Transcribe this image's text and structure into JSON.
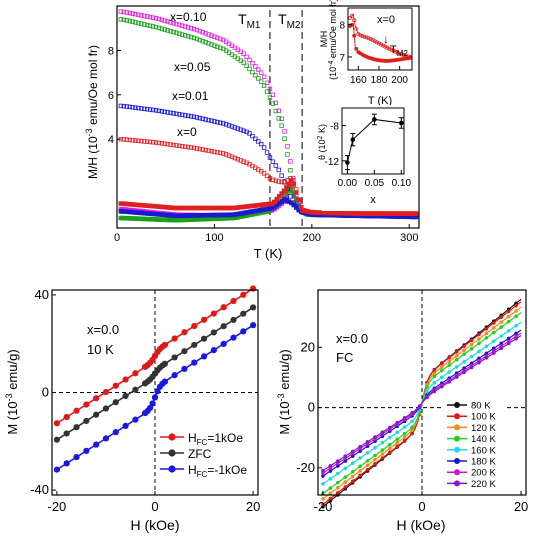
{
  "chart_data": [
    {
      "type": "scatter",
      "xlabel": "T (K)",
      "ylabel_parts": [
        "M/H (10",
        "-3",
        " emu/Oe mol fr)"
      ],
      "xlim": [
        0,
        310
      ],
      "ylim": [
        0,
        10
      ],
      "xticks": [
        0,
        100,
        200,
        300
      ],
      "yticks": [
        4,
        6,
        8
      ],
      "markers": [
        {
          "label": "T",
          "sub": "M1",
          "x": 157
        },
        {
          "label": "T",
          "sub": "M2",
          "x": 190
        }
      ],
      "series": [
        {
          "name": "x=0.10",
          "color": "#e020e0",
          "zfc": [
            [
              5,
              0.85
            ],
            [
              60,
              0.6
            ],
            [
              120,
              0.55
            ],
            [
              160,
              0.8
            ],
            [
              172,
              1.2
            ],
            [
              178,
              1.9
            ],
            [
              182,
              1.5
            ],
            [
              188,
              0.9
            ],
            [
              195,
              0.7
            ],
            [
              250,
              0.6
            ],
            [
              305,
              0.6
            ]
          ],
          "fc": [
            [
              5,
              9.75
            ],
            [
              40,
              9.45
            ],
            [
              80,
              8.95
            ],
            [
              110,
              8.45
            ],
            [
              130,
              7.85
            ],
            [
              150,
              6.9
            ],
            [
              160,
              6.0
            ],
            [
              170,
              4.8
            ],
            [
              178,
              3.0
            ],
            [
              184,
              1.5
            ],
            [
              190,
              0.8
            ],
            [
              200,
              0.7
            ],
            [
              250,
              0.62
            ],
            [
              305,
              0.6
            ]
          ]
        },
        {
          "name": "x=0.05",
          "color": "#1aa01a",
          "zfc": [
            [
              5,
              0.45
            ],
            [
              60,
              0.35
            ],
            [
              120,
              0.45
            ],
            [
              155,
              0.75
            ],
            [
              170,
              1.2
            ],
            [
              176,
              1.8
            ],
            [
              180,
              1.6
            ],
            [
              186,
              0.9
            ],
            [
              195,
              0.6
            ],
            [
              250,
              0.55
            ],
            [
              305,
              0.55
            ]
          ],
          "fc": [
            [
              5,
              9.4
            ],
            [
              40,
              9.05
            ],
            [
              80,
              8.55
            ],
            [
              110,
              8.05
            ],
            [
              130,
              7.45
            ],
            [
              150,
              6.5
            ],
            [
              160,
              5.6
            ],
            [
              170,
              4.5
            ],
            [
              178,
              2.6
            ],
            [
              184,
              1.2
            ],
            [
              190,
              0.7
            ],
            [
              200,
              0.6
            ],
            [
              250,
              0.55
            ],
            [
              305,
              0.55
            ]
          ]
        },
        {
          "name": "x=0.01",
          "color": "#1a1ad0",
          "zfc": [
            [
              5,
              0.75
            ],
            [
              60,
              0.55
            ],
            [
              120,
              0.6
            ],
            [
              160,
              0.9
            ],
            [
              172,
              1.3
            ],
            [
              180,
              1.1
            ],
            [
              188,
              0.75
            ],
            [
              200,
              0.6
            ],
            [
              250,
              0.55
            ],
            [
              305,
              0.5
            ]
          ],
          "fc": [
            [
              5,
              5.5
            ],
            [
              40,
              5.3
            ],
            [
              80,
              5.0
            ],
            [
              110,
              4.7
            ],
            [
              135,
              4.3
            ],
            [
              150,
              3.7
            ],
            [
              158,
              3.1
            ],
            [
              165,
              2.7
            ],
            [
              172,
              2.1
            ],
            [
              180,
              1.2
            ],
            [
              188,
              0.75
            ],
            [
              200,
              0.6
            ],
            [
              250,
              0.55
            ],
            [
              305,
              0.5
            ]
          ]
        },
        {
          "name": "x=0",
          "color": "#e02020",
          "zfc": [
            [
              5,
              1.1
            ],
            [
              60,
              0.9
            ],
            [
              120,
              0.9
            ],
            [
              160,
              1.1
            ],
            [
              172,
              1.7
            ],
            [
              180,
              2.2
            ],
            [
              184,
              1.6
            ],
            [
              190,
              0.8
            ],
            [
              200,
              0.7
            ],
            [
              250,
              0.65
            ],
            [
              305,
              0.65
            ]
          ],
          "fc": [
            [
              5,
              4.0
            ],
            [
              40,
              3.85
            ],
            [
              80,
              3.6
            ],
            [
              110,
              3.35
            ],
            [
              135,
              2.9
            ],
            [
              150,
              2.5
            ],
            [
              158,
              2.2
            ],
            [
              165,
              2.1
            ],
            [
              172,
              2.05
            ],
            [
              180,
              2.3
            ],
            [
              185,
              1.6
            ],
            [
              190,
              0.8
            ],
            [
              200,
              0.7
            ],
            [
              250,
              0.65
            ],
            [
              305,
              0.65
            ]
          ]
        }
      ]
    },
    {
      "type": "line",
      "inset": "top-right",
      "label": "x=0",
      "xlabel": "T (K)",
      "ylabel": "M/H",
      "ylabel2_parts": [
        "(10",
        "-4",
        " emu/Oe mol fr)"
      ],
      "arrow_label": {
        "label": "T",
        "sub": "M2"
      },
      "xlim": [
        150,
        212
      ],
      "ylim": [
        6.6,
        8.5
      ],
      "xticks": [
        160,
        180,
        200
      ],
      "yticks": [
        7,
        8
      ],
      "color": "#e02020",
      "fc": [
        [
          152,
          8.2
        ],
        [
          155,
          8.3
        ],
        [
          157,
          7.95
        ],
        [
          160,
          7.7
        ],
        [
          163,
          7.65
        ],
        [
          168,
          7.6
        ],
        [
          172,
          7.55
        ],
        [
          178,
          7.45
        ],
        [
          184,
          7.35
        ],
        [
          190,
          7.25
        ],
        [
          195,
          7.18
        ],
        [
          200,
          7.1
        ],
        [
          205,
          7.05
        ],
        [
          210,
          7.0
        ]
      ],
      "zfc": [
        [
          152,
          7.95
        ],
        [
          155,
          8.0
        ],
        [
          157,
          7.3
        ],
        [
          160,
          7.15
        ],
        [
          165,
          7.05
        ],
        [
          170,
          6.98
        ],
        [
          175,
          6.93
        ],
        [
          180,
          6.9
        ],
        [
          185,
          6.88
        ],
        [
          190,
          6.88
        ],
        [
          195,
          6.9
        ],
        [
          200,
          6.92
        ],
        [
          205,
          6.95
        ],
        [
          210,
          6.97
        ]
      ]
    },
    {
      "type": "line",
      "inset": "middle-right",
      "xlabel": "x",
      "ylabel_parts": [
        "θ (10",
        "2",
        " K)"
      ],
      "xlim": [
        -0.01,
        0.105
      ],
      "ylim": [
        -13.5,
        -6
      ],
      "xticks": [
        0.0,
        0.05,
        0.1
      ],
      "xtick_labels": [
        "0.00",
        "0.05",
        "0.10"
      ],
      "yticks": [
        -12,
        -8
      ],
      "points": [
        [
          0.0,
          -12.2,
          0.8
        ],
        [
          0.01,
          -9.6,
          0.7
        ],
        [
          0.05,
          -7.3,
          0.6
        ],
        [
          0.1,
          -7.7,
          0.6
        ]
      ]
    },
    {
      "type": "line",
      "xlabel": "H (kOe)",
      "ylabel_parts": [
        "M (10",
        "-3",
        " emu/g)"
      ],
      "label": "x=0.0",
      "label2": "10 K",
      "xlim": [
        -21,
        21
      ],
      "ylim": [
        -42,
        42
      ],
      "xticks": [
        -20,
        0,
        20
      ],
      "yticks": [
        -40,
        0,
        40
      ],
      "legend_placement": "bottom-right",
      "series": [
        {
          "name_parts": [
            "H",
            "FC",
            "=1kOe"
          ],
          "color": "#e01818",
          "slope": 1.28,
          "offset": 16,
          "step": 2.0
        },
        {
          "name_parts": [
            "ZFC"
          ],
          "color": "#333333",
          "slope": 1.28,
          "offset": 8.5,
          "step": 1.5
        },
        {
          "name_parts": [
            "H",
            "FC",
            "=-1kOe"
          ],
          "color": "#1818e0",
          "slope": 1.28,
          "offset": 0,
          "step": 4.0
        }
      ]
    },
    {
      "type": "line",
      "xlabel": "H (kOe)",
      "ylabel_parts": [
        "M (10",
        "-3",
        " emu/g)"
      ],
      "label": "x=0.0",
      "label2": "FC",
      "xlim": [
        -21,
        21
      ],
      "ylim": [
        -29,
        39
      ],
      "xticks": [
        -20,
        0,
        20
      ],
      "yticks": [
        -20,
        0,
        20
      ],
      "legend_placement": "bottom-right",
      "series": [
        {
          "name": "80 K",
          "color": "#111111",
          "slope": 1.32,
          "step": 8
        },
        {
          "name": "100 K",
          "color": "#e01818",
          "slope": 1.28,
          "step": 8
        },
        {
          "name": "120 K",
          "color": "#f08c1a",
          "slope": 1.24,
          "step": 7
        },
        {
          "name": "140 K",
          "color": "#22d022",
          "slope": 1.2,
          "step": 6
        },
        {
          "name": "160 K",
          "color": "#22d8e8",
          "slope": 1.14,
          "step": 4
        },
        {
          "name": "180 K",
          "color": "#1818c8",
          "slope": 1.1,
          "step": 2.2
        },
        {
          "name": "200 K",
          "color": "#c818c8",
          "slope": 1.08,
          "step": 1.6
        },
        {
          "name": "220 K",
          "color": "#8a18c8",
          "slope": 1.06,
          "step": 1.2
        }
      ]
    }
  ]
}
